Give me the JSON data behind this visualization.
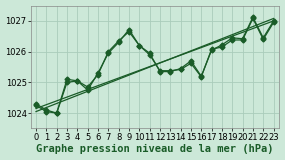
{
  "title": "Graphe pression niveau de la mer (hPa)",
  "bg_color": "#cce8d8",
  "grid_color": "#aaccbb",
  "line_color": "#1a5c28",
  "xlim": [
    -0.5,
    23.5
  ],
  "ylim": [
    1023.5,
    1027.5
  ],
  "yticks": [
    1024,
    1025,
    1026,
    1027
  ],
  "xticks": [
    0,
    1,
    2,
    3,
    4,
    5,
    6,
    7,
    8,
    9,
    10,
    11,
    12,
    13,
    14,
    15,
    16,
    17,
    18,
    19,
    20,
    21,
    22,
    23
  ],
  "s1": [
    1024.3,
    1024.1,
    1024.0,
    1025.1,
    1025.05,
    1024.85,
    1025.25,
    1026.0,
    1026.35,
    1026.65,
    1026.2,
    1025.9,
    1025.38,
    1025.38,
    1025.42,
    1025.62,
    1025.18,
    1026.08,
    1026.15,
    1026.38,
    1026.38,
    1027.08,
    1026.4,
    1026.95
  ],
  "s2": [
    1024.25,
    1024.05,
    1024.0,
    1025.0,
    1025.05,
    1024.75,
    1025.3,
    1025.95,
    1026.3,
    1026.72,
    1026.2,
    1025.95,
    1025.35,
    1025.35,
    1025.45,
    1025.7,
    1025.2,
    1026.05,
    1026.22,
    1026.45,
    1026.42,
    1027.12,
    1026.45,
    1027.0
  ],
  "trend1_x": [
    0,
    23
  ],
  "trend1_y": [
    1024.05,
    1027.08
  ],
  "trend2_x": [
    0,
    23
  ],
  "trend2_y": [
    1024.15,
    1027.0
  ],
  "marker": "D",
  "marker_size": 2.5,
  "linewidth": 0.9,
  "xlabel_fontsize": 7.5,
  "tick_fontsize": 6.0
}
